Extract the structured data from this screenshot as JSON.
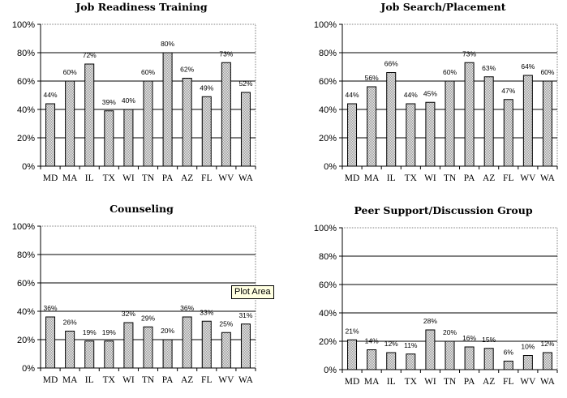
{
  "tooltip": "Plot Area",
  "colors": {
    "bar_fill": "#d4d4d4",
    "bar_stroke": "#000000",
    "gridline": "#000000",
    "plot_border": "#808080"
  },
  "chart_data": [
    {
      "type": "bar",
      "title": "Job Readiness Training",
      "categories": [
        "MD",
        "MA",
        "IL",
        "TX",
        "WI",
        "TN",
        "PA",
        "AZ",
        "FL",
        "WV",
        "WA"
      ],
      "values": [
        44,
        60,
        72,
        39,
        40,
        60,
        80,
        62,
        49,
        73,
        52
      ],
      "labels": [
        "44%",
        "60%",
        "72%",
        "39%",
        "40%",
        "60%",
        "80%",
        "62%",
        "49%",
        "73%",
        "52%"
      ],
      "ylim": [
        0,
        100
      ],
      "yticks": [
        "0%",
        "20%",
        "40%",
        "60%",
        "80%",
        "100%"
      ],
      "grid": true
    },
    {
      "type": "bar",
      "title": "Job Search/Placement",
      "categories": [
        "MD",
        "MA",
        "IL",
        "TX",
        "WI",
        "TN",
        "PA",
        "AZ",
        "FL",
        "WV",
        "WA"
      ],
      "values": [
        44,
        56,
        66,
        44,
        45,
        60,
        73,
        63,
        47,
        64,
        60
      ],
      "labels": [
        "44%",
        "56%",
        "66%",
        "44%",
        "45%",
        "60%",
        "73%",
        "63%",
        "47%",
        "64%",
        "60%"
      ],
      "ylim": [
        0,
        100
      ],
      "yticks": [
        "0%",
        "20%",
        "40%",
        "60%",
        "80%",
        "100%"
      ],
      "grid": true
    },
    {
      "type": "bar",
      "title": "Counseling",
      "categories": [
        "MD",
        "MA",
        "IL",
        "TX",
        "WI",
        "TN",
        "PA",
        "AZ",
        "FL",
        "WV",
        "WA"
      ],
      "values": [
        36,
        26,
        19,
        19,
        32,
        29,
        20,
        36,
        33,
        25,
        31
      ],
      "labels": [
        "36%",
        "26%",
        "19%",
        "19%",
        "32%",
        "29%",
        "20%",
        "36%",
        "33%",
        "25%",
        "31%"
      ],
      "ylim": [
        0,
        100
      ],
      "yticks": [
        "0%",
        "20%",
        "40%",
        "60%",
        "80%",
        "100%"
      ],
      "grid": true
    },
    {
      "type": "bar",
      "title": "Peer Support/Discussion Group",
      "categories": [
        "MD",
        "MA",
        "IL",
        "TX",
        "WI",
        "TN",
        "PA",
        "AZ",
        "FL",
        "WV",
        "WA"
      ],
      "values": [
        21,
        14,
        12,
        11,
        28,
        20,
        16,
        15,
        6,
        10,
        12
      ],
      "labels": [
        "21%",
        "14%",
        "12%",
        "11%",
        "28%",
        "20%",
        "16%",
        "15%",
        "6%",
        "10%",
        "12%"
      ],
      "ylim": [
        0,
        100
      ],
      "yticks": [
        "0%",
        "20%",
        "40%",
        "60%",
        "80%",
        "100%"
      ],
      "grid": true
    }
  ]
}
